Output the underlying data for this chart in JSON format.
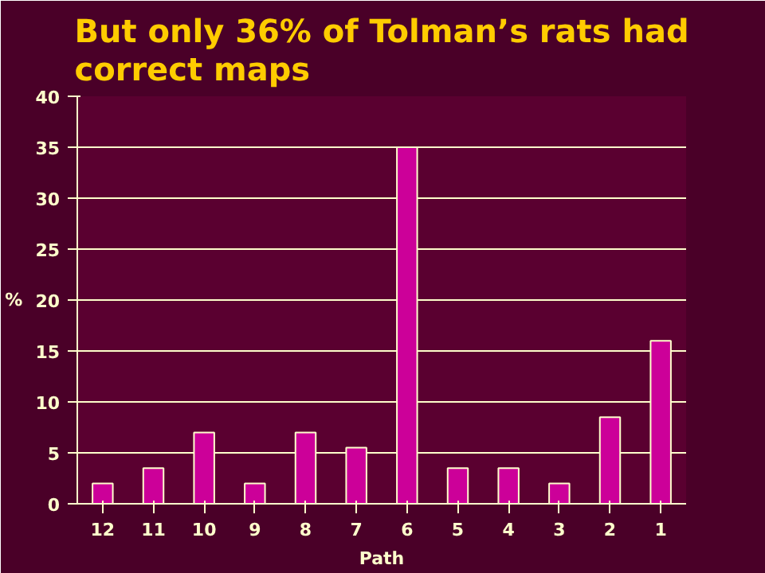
{
  "chart_data": {
    "type": "bar",
    "title": "But only 36% of Tolman’s rats had correct maps",
    "xlabel": "Path",
    "ylabel": "%",
    "categories": [
      "12",
      "11",
      "10",
      "9",
      "8",
      "7",
      "6",
      "5",
      "4",
      "3",
      "2",
      "1"
    ],
    "values": [
      2,
      3.5,
      7,
      2,
      7,
      5.5,
      35,
      3.5,
      3.5,
      2,
      8.5,
      16
    ],
    "color": "#cc0099",
    "ylim": [
      0,
      40
    ],
    "yticks": [
      0,
      5,
      10,
      15,
      20,
      25,
      30,
      35,
      40
    ],
    "grid": "y"
  }
}
